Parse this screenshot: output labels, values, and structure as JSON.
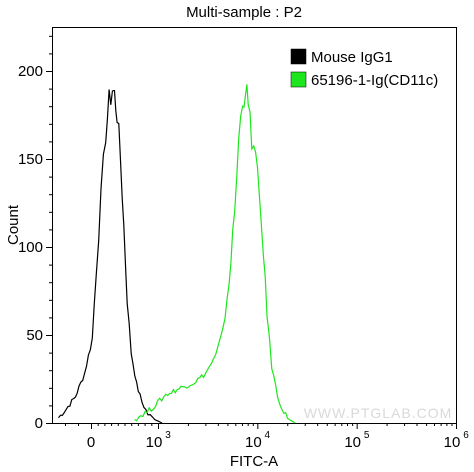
{
  "chart_data": {
    "type": "line",
    "title": "Multi-sample : P2",
    "xlabel": "FITC-A",
    "ylabel": "Count",
    "ylim": [
      0,
      225
    ],
    "x_scale": "biexponential",
    "x_ticks": [
      {
        "value": 0,
        "label": "0"
      },
      {
        "value": 1000,
        "label": "10",
        "sup": "3"
      },
      {
        "value": 10000,
        "label": "10",
        "sup": "4"
      },
      {
        "value": 100000,
        "label": "10",
        "sup": "5"
      },
      {
        "value": 1000000,
        "label": "10",
        "sup": "6"
      }
    ],
    "y_ticks": [
      0,
      50,
      100,
      150,
      200
    ],
    "grid": false,
    "legend_position": "top-right",
    "watermark": "WWW.PTGLAB.COM",
    "series": [
      {
        "name": "Mouse IgG1",
        "color": "#000000",
        "points": [
          [
            -250,
            3
          ],
          [
            -190,
            8
          ],
          [
            -120,
            15
          ],
          [
            -50,
            28
          ],
          [
            20,
            48
          ],
          [
            80,
            88
          ],
          [
            150,
            128
          ],
          [
            220,
            165
          ],
          [
            270,
            182
          ],
          [
            320,
            190
          ],
          [
            350,
            186
          ],
          [
            390,
            176
          ],
          [
            440,
            150
          ],
          [
            490,
            112
          ],
          [
            540,
            70
          ],
          [
            600,
            40
          ],
          [
            680,
            22
          ],
          [
            760,
            12
          ],
          [
            850,
            5
          ],
          [
            950,
            2
          ],
          [
            1100,
            0
          ]
        ]
      },
      {
        "name": "65196-1-Ig(CD11c)",
        "color": "#1ee61e",
        "points": [
          [
            650,
            2
          ],
          [
            900,
            8
          ],
          [
            1200,
            16
          ],
          [
            1700,
            20
          ],
          [
            2300,
            23
          ],
          [
            3000,
            28
          ],
          [
            3800,
            38
          ],
          [
            4500,
            52
          ],
          [
            5200,
            80
          ],
          [
            5900,
            120
          ],
          [
            6500,
            160
          ],
          [
            7100,
            185
          ],
          [
            7600,
            190
          ],
          [
            8100,
            180
          ],
          [
            8800,
            162
          ],
          [
            9600,
            150
          ],
          [
            10500,
            128
          ],
          [
            11500,
            98
          ],
          [
            12500,
            62
          ],
          [
            14000,
            32
          ],
          [
            16000,
            15
          ],
          [
            18500,
            6
          ],
          [
            21000,
            2
          ],
          [
            24000,
            0
          ]
        ]
      }
    ]
  }
}
